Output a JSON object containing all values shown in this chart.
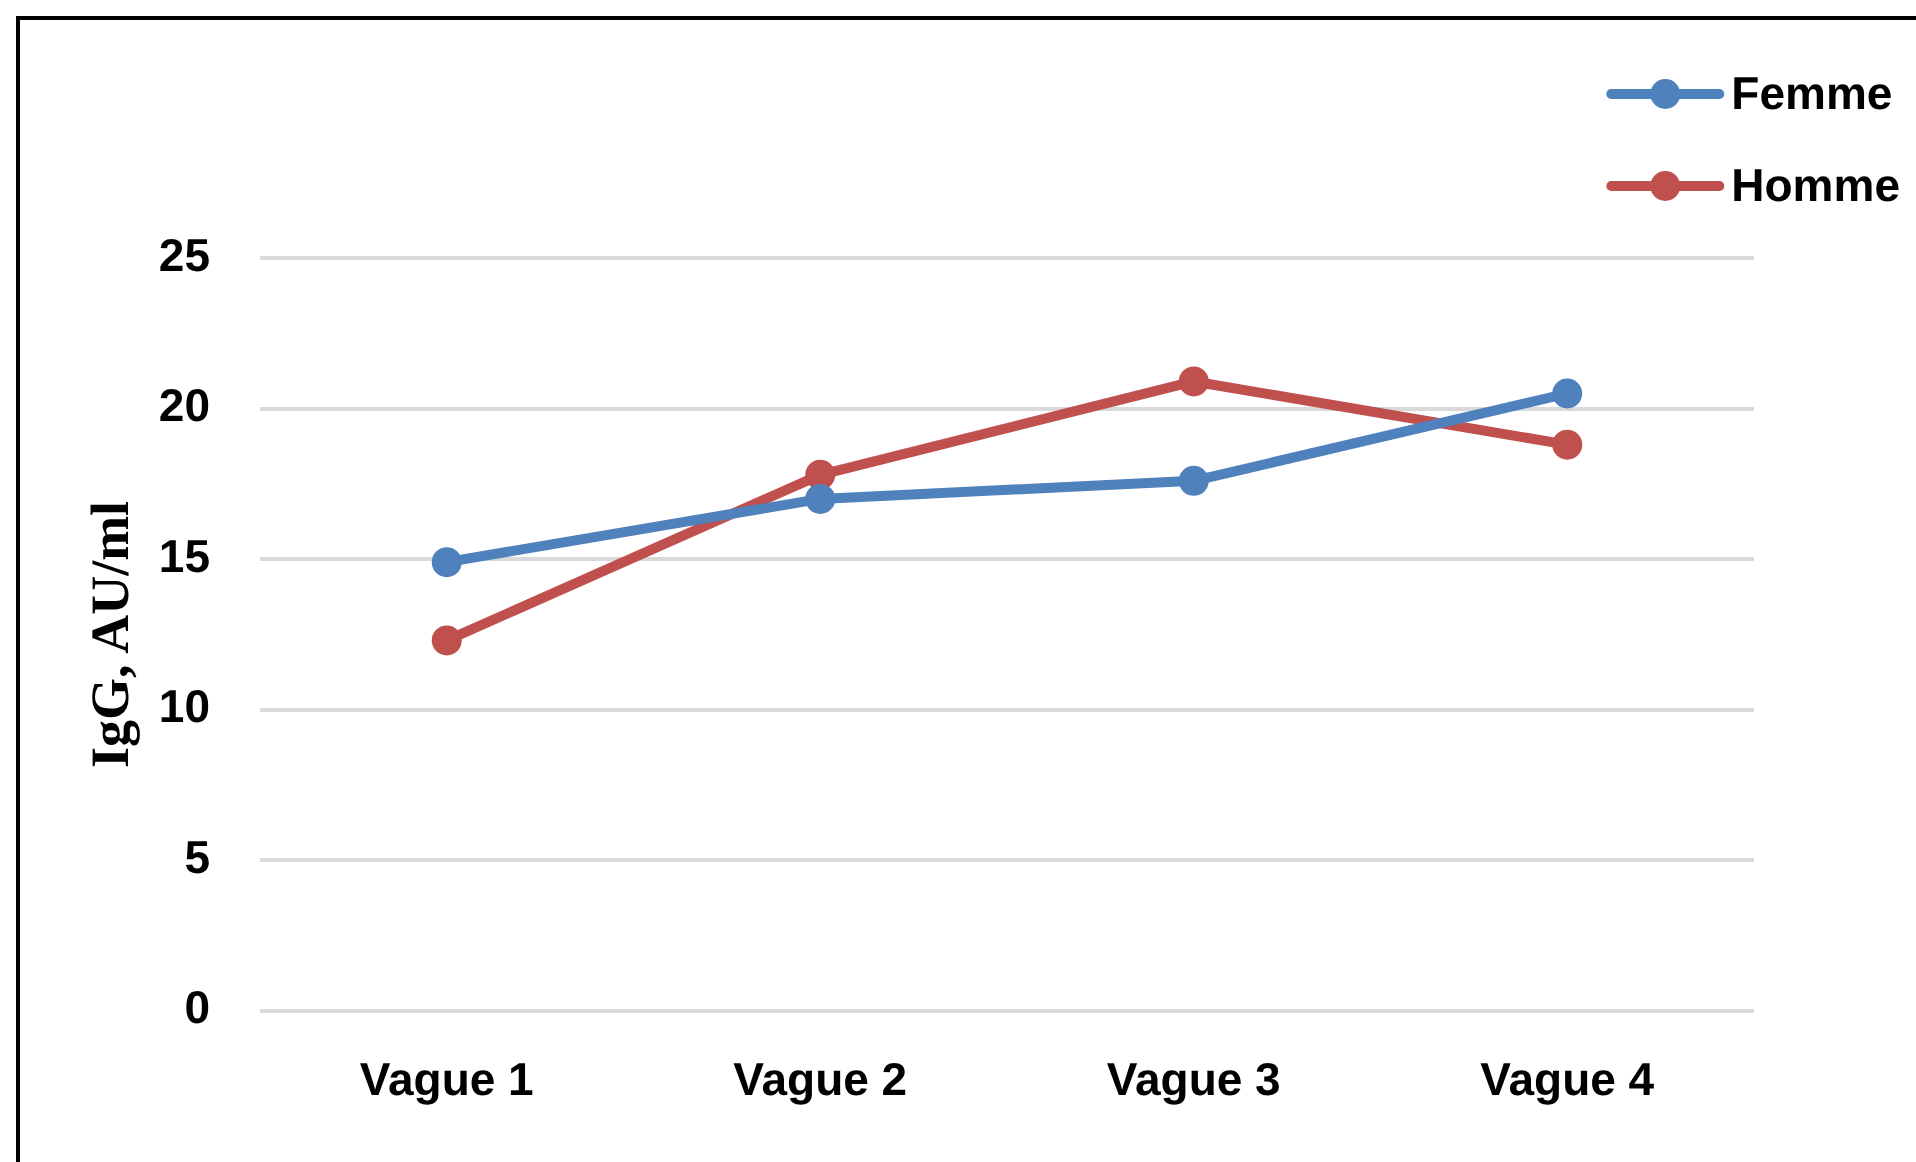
{
  "chart_data": {
    "type": "line",
    "categories": [
      "Vague 1",
      "Vague 2",
      "Vague 3",
      "Vague 4"
    ],
    "series": [
      {
        "name": "Femme",
        "color": "#4f81bd",
        "values": [
          14.9,
          17.0,
          17.6,
          20.5
        ]
      },
      {
        "name": "Homme",
        "color": "#c0504d",
        "values": [
          12.3,
          17.8,
          20.9,
          18.8
        ]
      }
    ],
    "ylabel": "IgG, AU/ml",
    "ylim": [
      0,
      25
    ],
    "yticks": [
      0,
      5,
      10,
      15,
      20,
      25
    ],
    "grid": "y",
    "legend": "top right",
    "marker": "circle"
  }
}
